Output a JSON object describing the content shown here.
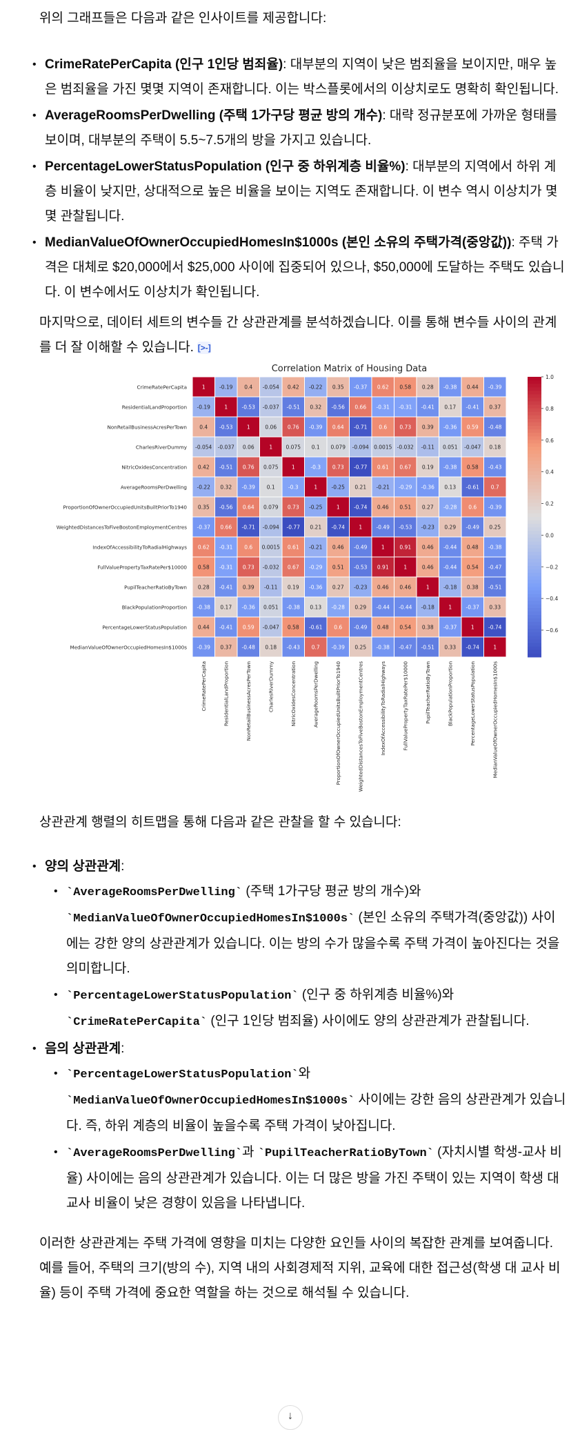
{
  "intro": "위의 그래프들은 다음과 같은 인사이트를 제공합니다:",
  "insights": [
    {
      "term": "CrimeRatePerCapita (인구 1인당 범죄율)",
      "text": ": 대부분의 지역이 낮은 범죄율을 보이지만, 매우 높은 범죄율을 가진 몇몇 지역이 존재합니다. 이는 박스플롯에서의 이상치로도 명확히 확인됩니다."
    },
    {
      "term": "AverageRoomsPerDwelling (주택 1가구당 평균 방의 개수)",
      "text": ": 대략 정규분포에 가까운 형태를 보이며, 대부분의 주택이 5.5~7.5개의 방을 가지고 있습니다."
    },
    {
      "term": "PercentageLowerStatusPopulation (인구 중 하위계층 비율%)",
      "text": ": 대부분의 지역에서 하위 계층 비율이 낮지만, 상대적으로 높은 비율을 보이는 지역도 존재합니다. 이 변수 역시 이상치가 몇몇 관찰됩니다."
    },
    {
      "term": "MedianValueOfOwnerOccupiedHomesIn$1000s (본인 소유의 주택가격(중앙값))",
      "text": ": 주택 가격은 대체로 $20,000에서 $25,000 사이에 집중되어 있으나, $50,000에 도달하는 주택도 있습니다. 이 변수에서도 이상치가 확인됩니다."
    }
  ],
  "analysis_intro": "마지막으로, 데이터 세트의 변수들 간 상관관계를 분석하겠습니다. 이를 통해 변수들 사이의 관계를 더 잘 이해할 수 있습니다.",
  "citation_icon": "[>-]",
  "chart_data": {
    "type": "heatmap",
    "title": "Correlation Matrix of Housing Data",
    "labels": [
      "CrimeRatePerCapita",
      "ResidentialLandProportion",
      "NonRetailBusinessAcresPerTown",
      "CharlesRiverDummy",
      "NitricOxidesConcentration",
      "AverageRoomsPerDwelling",
      "ProportionOfOwnerOccupiedUnitsBuiltPriorTo1940",
      "WeightedDistancesToFiveBostonEmploymentCentres",
      "IndexOfAccessibilityToRadialHighways",
      "FullValuePropertyTaxRatePer$10000",
      "PupilTeacherRatioByTown",
      "BlackPopulationProportion",
      "PercentageLowerStatusPopulation",
      "MedianValueOfOwnerOccupiedHomesIn$1000s"
    ],
    "matrix": [
      [
        1,
        -0.19,
        0.4,
        -0.054,
        0.42,
        -0.22,
        0.35,
        -0.37,
        0.62,
        0.58,
        0.28,
        -0.38,
        0.44,
        -0.39
      ],
      [
        -0.19,
        1,
        -0.53,
        -0.037,
        -0.51,
        0.32,
        -0.56,
        0.66,
        -0.31,
        -0.31,
        -0.41,
        0.17,
        -0.41,
        0.37
      ],
      [
        0.4,
        -0.53,
        1,
        0.06,
        0.76,
        -0.39,
        0.64,
        -0.71,
        0.6,
        0.73,
        0.39,
        -0.36,
        0.59,
        -0.48
      ],
      [
        -0.054,
        -0.037,
        0.06,
        1,
        0.075,
        0.1,
        0.079,
        -0.094,
        0.0015,
        -0.032,
        -0.11,
        0.051,
        -0.047,
        0.18
      ],
      [
        0.42,
        -0.51,
        0.76,
        0.075,
        1,
        -0.3,
        0.73,
        -0.77,
        0.61,
        0.67,
        0.19,
        -0.38,
        0.58,
        -0.43
      ],
      [
        -0.22,
        0.32,
        -0.39,
        0.1,
        -0.3,
        1,
        -0.25,
        0.21,
        -0.21,
        -0.29,
        -0.36,
        0.13,
        -0.61,
        0.7
      ],
      [
        0.35,
        -0.56,
        0.64,
        0.079,
        0.73,
        -0.25,
        1,
        -0.74,
        0.46,
        0.51,
        0.27,
        -0.28,
        0.6,
        -0.39
      ],
      [
        -0.37,
        0.66,
        -0.71,
        -0.094,
        -0.77,
        0.21,
        -0.74,
        1,
        -0.49,
        -0.53,
        -0.23,
        0.29,
        -0.49,
        0.25
      ],
      [
        0.62,
        -0.31,
        0.6,
        0.0015,
        0.61,
        -0.21,
        0.46,
        -0.49,
        1,
        0.91,
        0.46,
        -0.44,
        0.48,
        -0.38
      ],
      [
        0.58,
        -0.31,
        0.73,
        -0.032,
        0.67,
        -0.29,
        0.51,
        -0.53,
        0.91,
        1,
        0.46,
        -0.44,
        0.54,
        -0.47
      ],
      [
        0.28,
        -0.41,
        0.39,
        -0.11,
        0.19,
        -0.36,
        0.27,
        -0.23,
        0.46,
        0.46,
        1,
        -0.18,
        0.38,
        -0.51
      ],
      [
        -0.38,
        0.17,
        -0.36,
        0.051,
        -0.38,
        0.13,
        -0.28,
        0.29,
        -0.44,
        -0.44,
        -0.18,
        1,
        -0.37,
        0.33
      ],
      [
        0.44,
        -0.41,
        0.59,
        -0.047,
        0.58,
        -0.61,
        0.6,
        -0.49,
        0.48,
        0.54,
        0.38,
        -0.37,
        1,
        -0.74
      ],
      [
        -0.39,
        0.37,
        -0.48,
        0.18,
        -0.43,
        0.7,
        -0.39,
        0.25,
        -0.38,
        -0.47,
        -0.51,
        0.33,
        -0.74,
        1
      ]
    ],
    "colormap": "coolwarm",
    "vrange": [
      -0.77,
      1
    ],
    "colorbar_ticks": [
      "1.0",
      "0.8",
      "0.6",
      "0.4",
      "0.2",
      "0.0",
      "−0.2",
      "−0.4",
      "−0.6"
    ],
    "colorbar_tick_values": [
      1,
      0.8,
      0.6,
      0.4,
      0.2,
      0,
      -0.2,
      -0.4,
      -0.6
    ]
  },
  "heatmap_intro": "상관관계 행렬의 히트맵을 통해 다음과 같은 관찰을 할 수 있습니다:",
  "positive": {
    "title": "양의 상관관계",
    "colon": ":",
    "items": [
      {
        "code1": "`AverageRoomsPerDwelling`",
        "mid": " (주택 1가구당 평균 방의 개수)와 ",
        "code2": "`MedianValueOfOwnerOccupiedHomesIn$1000s`",
        "text": " (본인 소유의 주택가격(중앙값)) 사이에는 강한 양의 상관관계가 있습니다. 이는 방의 수가 많을수록 주택 가격이 높아진다는 것을 의미합니다."
      },
      {
        "code1": "`PercentageLowerStatusPopulation`",
        "mid": " (인구 중 하위계층 비율%)와 ",
        "code2": "`CrimeRatePerCapita`",
        "text": " (인구 1인당 범죄율) 사이에도 양의 상관관계가 관찰됩니다."
      }
    ]
  },
  "negative": {
    "title": "음의 상관관계",
    "colon": ":",
    "items": [
      {
        "code1": "`PercentageLowerStatusPopulation`",
        "mid": "와 ",
        "code2": "`MedianValueOfOwnerOccupiedHomesIn$1000s`",
        "text": " 사이에는 강한 음의 상관관계가 있습니다. 즉, 하위 계층의 비율이 높을수록 주택 가격이 낮아집니다."
      },
      {
        "code1": "`AverageRoomsPerDwelling`",
        "mid": "과 ",
        "code2": "`PupilTeacherRatioByTown`",
        "text": " (자치시별 학생-교사 비율) 사이에는 음의 상관관계가 있습니다. 이는 더 많은 방을 가진 주택이 있는 지역이 학생 대 교사 비율이 낮은 경향이 있음을 나타냅니다."
      }
    ]
  },
  "conclusion": "이러한 상관관계는 주택 가격에 영향을 미치는 다양한 요인들 사이의 복잡한 관계를 보여줍니다. 예를 들어, 주택의 크기(방의 수), 지역 내의 사회경제적 지위, 교육에 대한 접근성(학생 대 교사 비율) 등이 주택 가격에 중요한 역할을 하는 것으로 해석될 수 있습니다.",
  "scroll_icon": "↓"
}
